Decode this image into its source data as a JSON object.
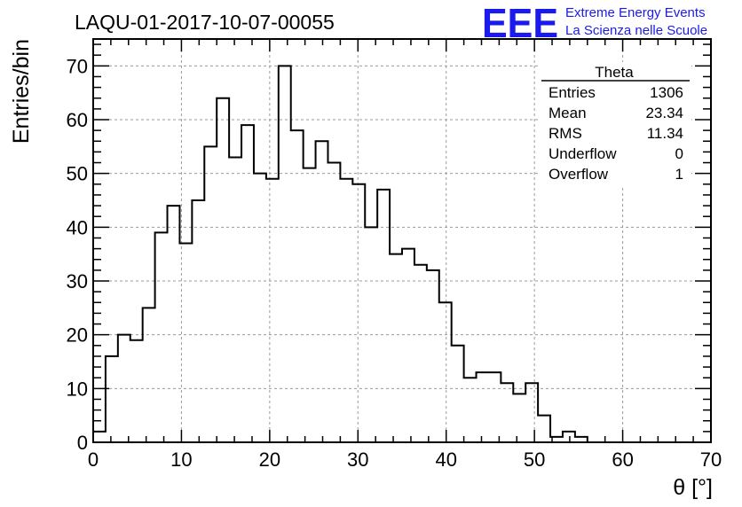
{
  "header": {
    "run_title": "LAQU-01-2017-10-07-00055",
    "logo_mark": "EEE",
    "logo_line1": "Extreme Energy Events",
    "logo_line2": "La Scienza nelle Scuole"
  },
  "stats_box": {
    "title": "Theta",
    "rows": [
      {
        "label": "Entries",
        "value": "1306"
      },
      {
        "label": "Mean",
        "value": "23.34"
      },
      {
        "label": "RMS",
        "value": "11.34"
      },
      {
        "label": "Underflow",
        "value": "0"
      },
      {
        "label": "Overflow",
        "value": "1"
      }
    ]
  },
  "colors": {
    "histogram_line": "#000000",
    "grid": "#9a9a9a",
    "logo": "#1a1aee"
  },
  "chart_data": {
    "type": "bar",
    "style": "step histogram",
    "xlabel": "θ [°]",
    "ylabel": "Entries/bin",
    "xlim": [
      0,
      70
    ],
    "ylim": [
      0,
      75
    ],
    "grid": true,
    "bin_width": 1.4,
    "bin_start": 0,
    "values": [
      2,
      16,
      20,
      19,
      25,
      39,
      44,
      37,
      45,
      55,
      64,
      53,
      59,
      50,
      49,
      70,
      58,
      51,
      56,
      52,
      49,
      48,
      40,
      47,
      35,
      36,
      33,
      32,
      26,
      18,
      12,
      13,
      13,
      11,
      9,
      11,
      5,
      1,
      2,
      1,
      0,
      0,
      0,
      0,
      0,
      0,
      0,
      0,
      0,
      0
    ],
    "x_ticks": [
      0,
      10,
      20,
      30,
      40,
      50,
      60,
      70
    ],
    "y_ticks": [
      0,
      10,
      20,
      30,
      40,
      50,
      60,
      70
    ]
  }
}
